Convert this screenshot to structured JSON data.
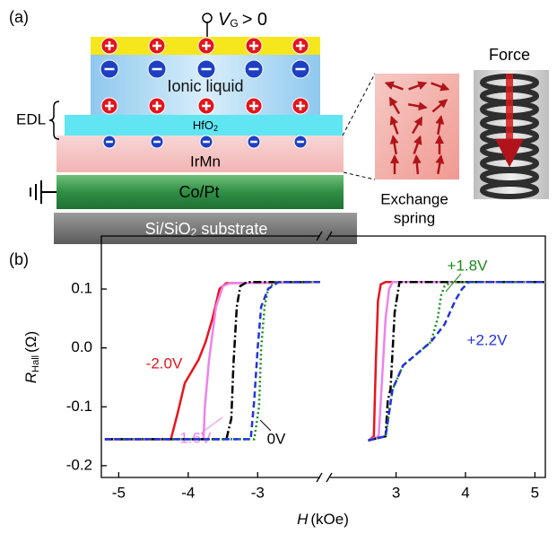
{
  "panel_a": {
    "label": "(a)",
    "gate_symbol": "V",
    "gate_subscript": "G",
    "gate_condition": "> 0",
    "ionic_liquid": "Ionic liquid",
    "hfo2": {
      "base": "HfO",
      "sub": "2"
    },
    "edl": "EDL",
    "irmn": "IrMn",
    "copt": "Co/Pt",
    "substrate": {
      "base": "Si/SiO",
      "sub": "2",
      "rest": " substrate"
    },
    "exchange": "Exchange",
    "spring": "spring",
    "force": "Force"
  },
  "chart_data": {
    "type": "line",
    "panel_label": "(b)",
    "xlabel": {
      "symbol": "H",
      "unit": "(kOe)"
    },
    "ylabel": {
      "symbol": "R",
      "subscript": "Hall",
      "unit": "(Ω)"
    },
    "xlim": [
      -5.25,
      5.15
    ],
    "xbreak": [
      -2.1,
      2.05
    ],
    "xticks": [
      -5,
      -4,
      -3,
      3,
      4,
      5
    ],
    "ylim": [
      -0.22,
      0.19
    ],
    "yticks": [
      -0.2,
      -0.1,
      {
        "value": 0,
        "label": "0.0"
      },
      0.1
    ],
    "series": [
      {
        "name": "-2.0V",
        "color": "#e8141c",
        "dash": "solid",
        "x": [
          -5.2,
          -4.25,
          -4.15,
          -4.05,
          -3.95,
          -3.85,
          -3.75,
          -3.65,
          -3.55,
          -3.45,
          -2.1,
          null,
          2.6,
          2.68,
          2.71,
          2.74,
          2.78,
          2.85,
          5.15
        ],
        "y": [
          -0.155,
          -0.155,
          -0.11,
          -0.06,
          -0.04,
          -0.02,
          0.01,
          0.05,
          0.1,
          0.11,
          0.112,
          null,
          -0.158,
          -0.15,
          -0.02,
          0.08,
          0.108,
          0.112,
          0.112
        ]
      },
      {
        "name": "-1.6V",
        "color": "#ee82ee",
        "dash": "solid",
        "x": [
          -5.2,
          -3.78,
          -3.76,
          -3.7,
          -3.6,
          -3.5,
          -3.4,
          -2.1,
          null,
          2.6,
          2.75,
          2.8,
          2.85,
          2.9,
          2.95,
          5.15
        ],
        "y": [
          -0.155,
          -0.155,
          -0.1,
          -0.02,
          0.07,
          0.105,
          0.11,
          0.112,
          null,
          -0.157,
          -0.15,
          -0.05,
          0.05,
          0.1,
          0.112,
          0.112
        ]
      },
      {
        "name": "0V",
        "color": "#000000",
        "dash": "dashdot",
        "x": [
          -5.2,
          -3.45,
          -3.38,
          -3.35,
          -3.3,
          -3.25,
          -3.15,
          -2.1,
          null,
          2.6,
          2.85,
          2.88,
          2.92,
          2.98,
          3.05,
          5.15
        ],
        "y": [
          -0.155,
          -0.155,
          -0.12,
          -0.03,
          0.07,
          0.105,
          0.112,
          0.112,
          null,
          -0.157,
          -0.15,
          -0.09,
          -0.07,
          0.06,
          0.112,
          0.112
        ]
      },
      {
        "name": "+1.8V",
        "color": "#1a8a1a",
        "dash": "dotted",
        "x": [
          -5.2,
          -3.05,
          -2.98,
          -2.95,
          -2.9,
          -2.85,
          -2.75,
          -2.1,
          null,
          2.6,
          2.85,
          2.95,
          3.1,
          3.3,
          3.5,
          3.6,
          3.65,
          3.7,
          3.8,
          5.15
        ],
        "y": [
          -0.155,
          -0.155,
          -0.1,
          0,
          0.07,
          0.1,
          0.112,
          0.112,
          null,
          -0.157,
          -0.15,
          -0.07,
          -0.03,
          -0.01,
          0.01,
          0.05,
          0.09,
          0.105,
          0.112,
          0.112
        ]
      },
      {
        "name": "+2.2V",
        "color": "#2233dd",
        "dash": "dashed",
        "x": [
          -5.2,
          -3.1,
          -3.05,
          -3,
          -2.95,
          -2.85,
          -2.7,
          -2.1,
          null,
          2.6,
          2.85,
          2.95,
          3.1,
          3.3,
          3.5,
          3.7,
          3.85,
          3.95,
          4.05,
          5.15
        ],
        "y": [
          -0.155,
          -0.155,
          -0.09,
          0,
          0.07,
          0.1,
          0.112,
          0.112,
          null,
          -0.157,
          -0.15,
          -0.07,
          -0.03,
          -0.01,
          0.01,
          0.04,
          0.08,
          0.1,
          0.112,
          0.112
        ]
      }
    ]
  }
}
